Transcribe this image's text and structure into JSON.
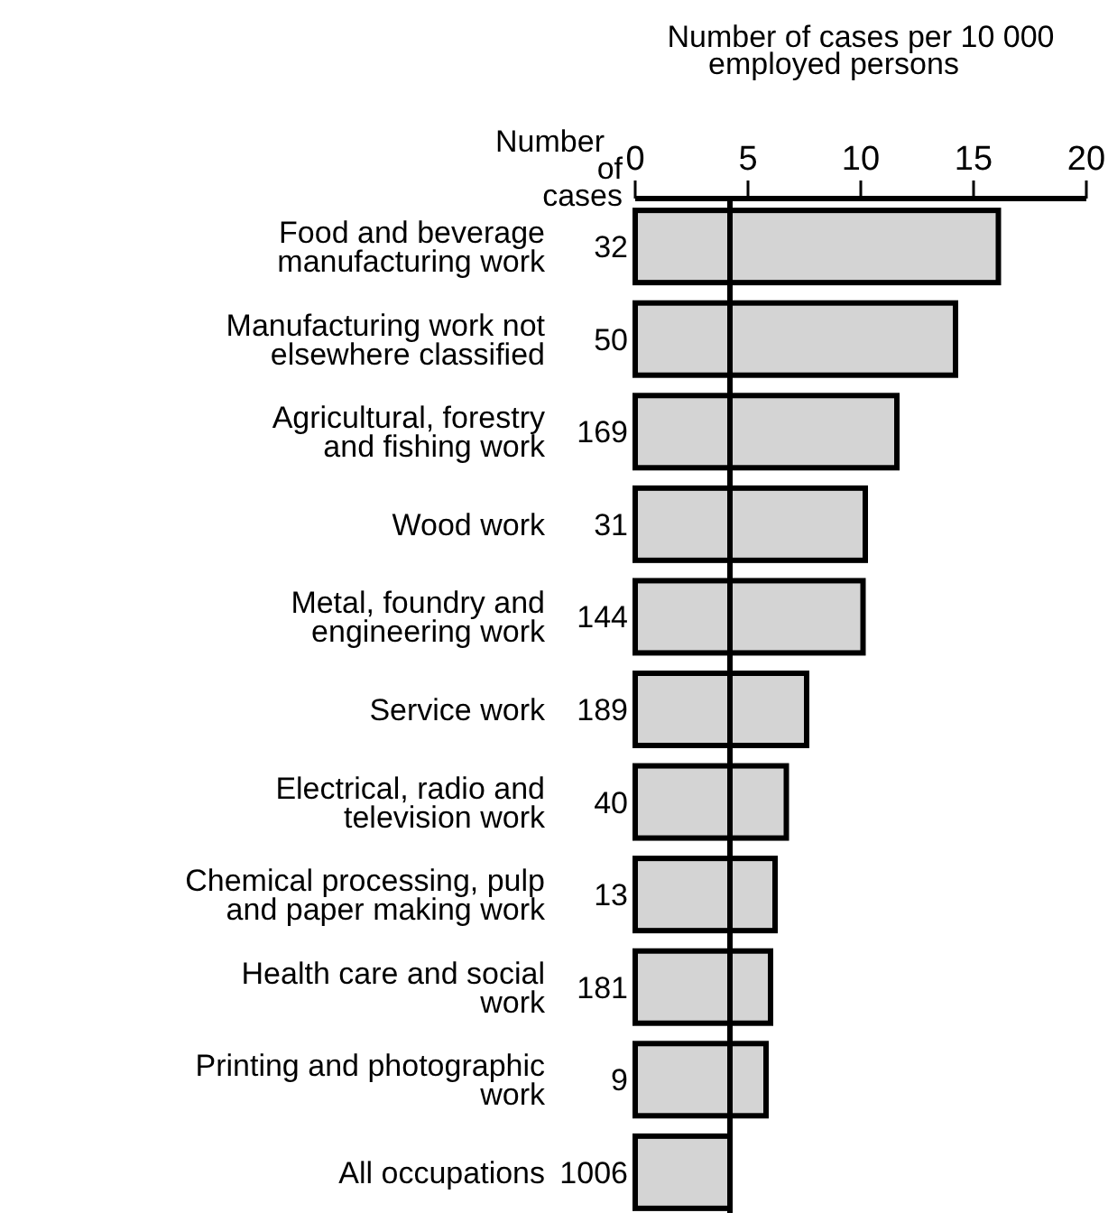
{
  "chart_data": {
    "type": "bar",
    "orientation": "horizontal",
    "xlabel": "Number of cases per 10 000 employed persons",
    "categories": [
      "Food and beverage manufacturing work",
      "Manufacturing work not elsewhere classified",
      "Agricultural, forestry and fishing work",
      "Wood work",
      "Metal, foundry and engineering work",
      "Service work",
      "Electrical, radio and television work",
      "Chemical processing, pulp and paper making work",
      "Health care and social work",
      "Printing and photographic work",
      "All occupations"
    ],
    "values": [
      16.1,
      14.2,
      11.6,
      10.2,
      10.1,
      7.6,
      6.7,
      6.2,
      6.0,
      5.8,
      4.2
    ],
    "annotations": [
      "Number of cases",
      "32",
      "50",
      "169",
      "31",
      "144",
      "189",
      "40",
      "13",
      "181",
      "9",
      "1006"
    ],
    "color": "#d4d4d4",
    "xlim": [
      0,
      20
    ],
    "xticks": [
      0,
      5,
      10,
      15,
      20
    ],
    "ref_lines": [
      {
        "axis": "x",
        "value": 4.2,
        "color": "#000000"
      }
    ],
    "grid": false
  }
}
